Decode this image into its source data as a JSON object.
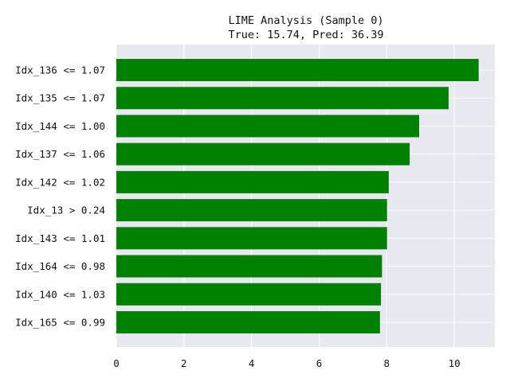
{
  "chart_data": {
    "type": "bar",
    "orientation": "horizontal",
    "title": "LIME Analysis (Sample 0)",
    "subtitle": "True: 15.74, Pred: 36.39",
    "categories": [
      "Idx_136 <= 1.07",
      "Idx_135 <= 1.07",
      "Idx_144 <= 1.00",
      "Idx_137 <= 1.06",
      "Idx_142 <= 1.02",
      "Idx_13 > 0.24",
      "Idx_143 <= 1.01",
      "Idx_164 <= 0.98",
      "Idx_140 <= 1.03",
      "Idx_165 <= 0.99"
    ],
    "values": [
      10.72,
      9.83,
      8.96,
      8.68,
      8.06,
      8.01,
      8.01,
      7.86,
      7.83,
      7.8
    ],
    "xlim": [
      0,
      11.2
    ],
    "xticks": [
      0,
      2,
      4,
      6,
      8,
      10
    ],
    "grid": true,
    "colors": {
      "bar": "#008000",
      "plot_background": "#e8e8f1",
      "grid": "#ffffff"
    }
  }
}
